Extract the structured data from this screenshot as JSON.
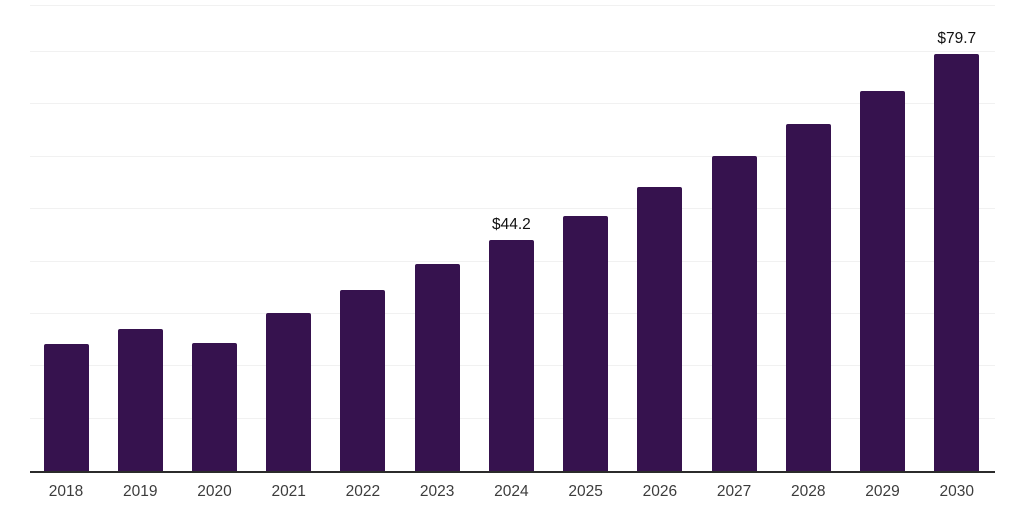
{
  "chart_data": {
    "type": "bar",
    "title": "",
    "xlabel": "",
    "ylabel": "",
    "categories": [
      "2018",
      "2019",
      "2020",
      "2021",
      "2022",
      "2023",
      "2024",
      "2025",
      "2026",
      "2027",
      "2028",
      "2029",
      "2030"
    ],
    "values": [
      24.3,
      27.2,
      24.5,
      30.2,
      34.5,
      39.5,
      44.2,
      48.8,
      54.3,
      60.2,
      66.3,
      72.6,
      79.7
    ],
    "point_labels": {
      "2024": "$44.2",
      "2030": "$79.7"
    },
    "ylim": [
      0,
      89
    ],
    "gridline_step": 10,
    "grid": "horizontal",
    "legend": "none",
    "y_tick_labels_visible": false,
    "colors": {
      "bar": "#36124E",
      "axis": "#2b2b2b",
      "gridline": "#f1f1f1",
      "tick_label": "#3c3c3c",
      "value_label": "#111111",
      "background": "#ffffff"
    }
  }
}
